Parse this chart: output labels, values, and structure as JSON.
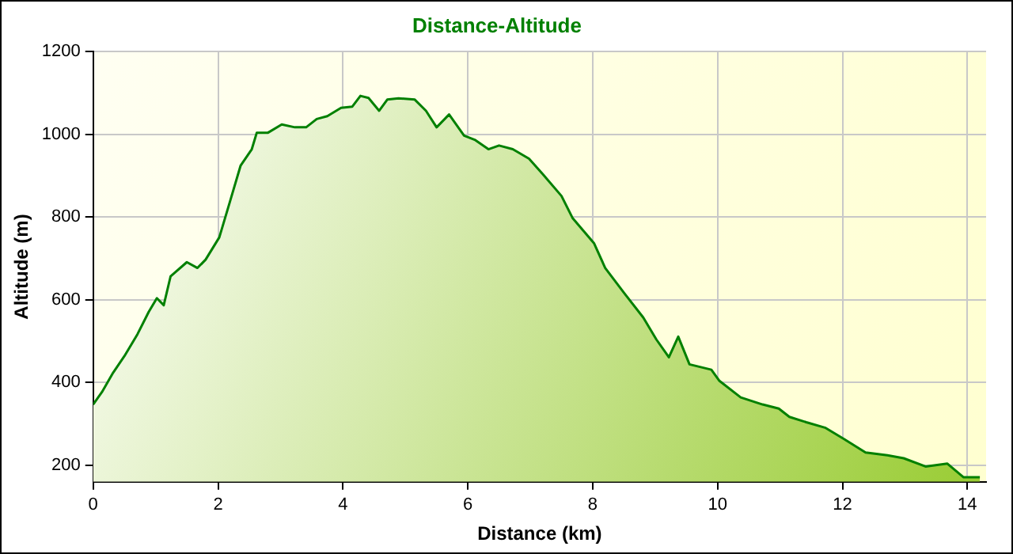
{
  "chart_data": {
    "type": "area",
    "title": "Distance-Altitude",
    "xlabel": "Distance (km)",
    "ylabel": "Altitude (m)",
    "xlim": [
      0,
      14.3
    ],
    "xticks": [
      0,
      2,
      4,
      6,
      8,
      10,
      12,
      14
    ],
    "ylim": [
      160,
      1200
    ],
    "yticks": [
      200,
      400,
      600,
      800,
      1000,
      1200
    ],
    "grid": true,
    "legend": false,
    "marker": "none",
    "line_style": "solid",
    "series": [
      {
        "color": "#008000",
        "x": [
          0,
          0.14,
          0.32,
          0.5,
          0.71,
          0.89,
          1.02,
          1.13,
          1.24,
          1.5,
          1.67,
          1.8,
          2.02,
          2.19,
          2.36,
          2.54,
          2.62,
          2.8,
          3.02,
          3.23,
          3.41,
          3.58,
          3.75,
          3.97,
          4.15,
          4.28,
          4.41,
          4.58,
          4.71,
          4.89,
          5.15,
          5.33,
          5.5,
          5.7,
          5.94,
          6.11,
          6.33,
          6.5,
          6.72,
          6.98,
          7.2,
          7.5,
          7.68,
          8.02,
          8.2,
          8.5,
          8.81,
          9.02,
          9.22,
          9.37,
          9.55,
          9.9,
          10.03,
          10.37,
          10.72,
          10.98,
          11.15,
          11.42,
          11.72,
          12.02,
          12.37,
          12.72,
          12.98,
          13.33,
          13.68,
          13.94,
          14.2
        ],
        "values": [
          347,
          377,
          424,
          464,
          517,
          571,
          604,
          587,
          657,
          691,
          677,
          697,
          751,
          837,
          924,
          964,
          1004,
          1004,
          1024,
          1017,
          1017,
          1037,
          1044,
          1064,
          1067,
          1093,
          1088,
          1057,
          1084,
          1087,
          1084,
          1057,
          1017,
          1048,
          997,
          987,
          964,
          973,
          964,
          941,
          904,
          851,
          797,
          737,
          677,
          617,
          557,
          504,
          461,
          511,
          444,
          431,
          404,
          364,
          347,
          337,
          317,
          304,
          291,
          264,
          231,
          224,
          217,
          197,
          204,
          171,
          171
        ]
      }
    ]
  }
}
